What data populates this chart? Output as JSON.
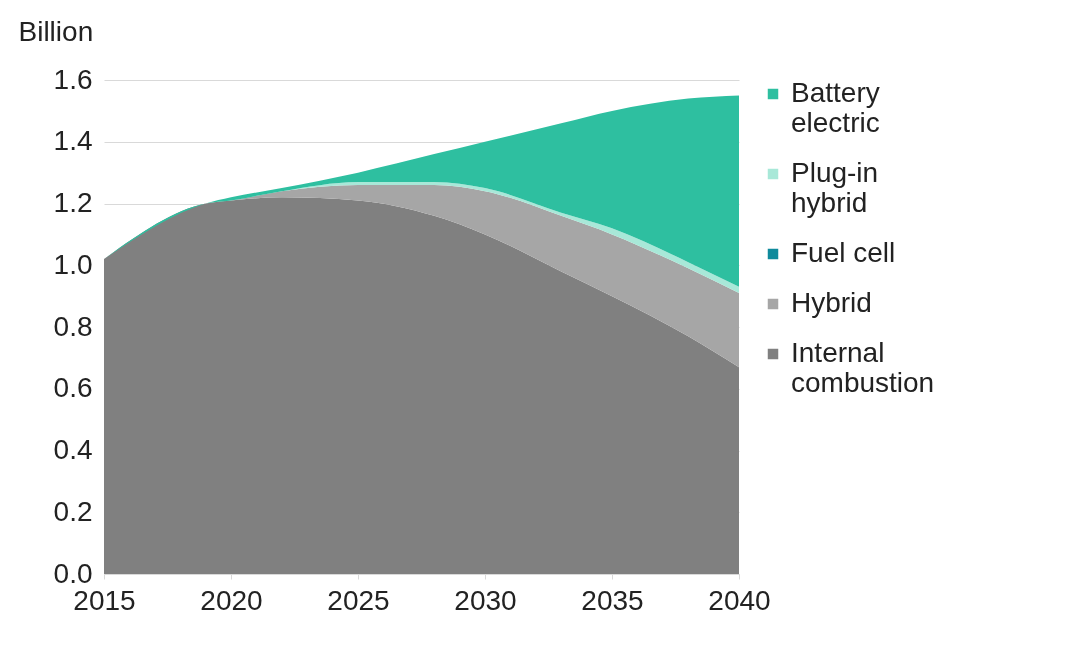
{
  "chart_data": {
    "type": "area",
    "stacked": true,
    "ylabel": "Billion",
    "x": [
      2015,
      2019,
      2020,
      2022,
      2025,
      2028,
      2030,
      2033,
      2035,
      2038,
      2040
    ],
    "series": [
      {
        "name": "Internal combustion",
        "color": "#808080",
        "values": [
          1.02,
          1.2,
          1.21,
          1.22,
          1.21,
          1.16,
          1.1,
          0.98,
          0.9,
          0.77,
          0.67
        ]
      },
      {
        "name": "Hybrid",
        "color": "#a6a6a6",
        "values": [
          0,
          0,
          0,
          0.02,
          0.05,
          0.1,
          0.14,
          0.18,
          0.2,
          0.22,
          0.24
        ]
      },
      {
        "name": "Fuel cell",
        "color": "#0f8a9c",
        "values": [
          null,
          null,
          null,
          null,
          null,
          null,
          null,
          null,
          null,
          null,
          null
        ]
      },
      {
        "name": "Plug-in hybrid",
        "color": "#a8e8d8",
        "values": [
          0,
          0,
          0,
          0,
          0.01,
          0.01,
          0.01,
          0.01,
          0.02,
          0.02,
          0.02
        ]
      },
      {
        "name": "Battery electric",
        "color": "#2ebfa0",
        "values": [
          0,
          0,
          0.01,
          0.01,
          0.03,
          0.09,
          0.15,
          0.29,
          0.38,
          0.53,
          0.62
        ]
      }
    ],
    "xlim": [
      2015,
      2040
    ],
    "xticks": [
      2015,
      2020,
      2025,
      2030,
      2035,
      2040
    ],
    "ylim": [
      0,
      1.6
    ],
    "yticks": [
      {
        "value": 0,
        "label": "0.0"
      },
      0.2,
      0.4,
      0.6,
      0.8,
      {
        "value": 1,
        "label": "1.0"
      },
      1.2,
      1.4,
      1.6
    ],
    "grid": "y",
    "legend": "right"
  }
}
